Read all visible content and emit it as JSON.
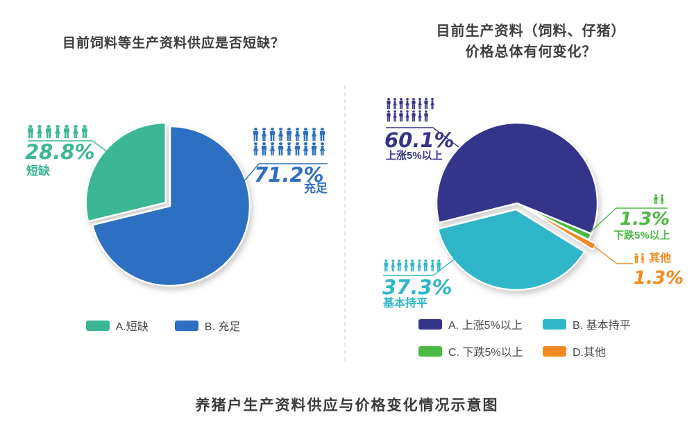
{
  "page": {
    "caption": "养猪户生产资料供应与价格变化情况示意图",
    "background_color": "#ffffff",
    "divider_color": "#e4e4e4",
    "title_color": "#3d3d3d"
  },
  "chart_data": [
    {
      "type": "pie",
      "title": "目前饲料等生产资料供应是否短缺？",
      "title_lines": [
        "目前饲料等生产资料供应是否短缺？"
      ],
      "start_angle": 0,
      "legend_position": "bottom",
      "slices": [
        {
          "name": "充足",
          "pct": 71.2,
          "display": "71.2%",
          "color": "#2d6fc1",
          "explode": 0,
          "people": 18
        },
        {
          "name": "短缺",
          "pct": 28.8,
          "display": "28.8%",
          "color": "#3bb795",
          "explode": 8,
          "people": 7
        }
      ],
      "legend": [
        {
          "label": "A.短缺",
          "color": "#3bb795"
        },
        {
          "label": "B. 充足",
          "color": "#2d6fc1"
        }
      ]
    },
    {
      "type": "pie",
      "title": "目前生产资料（饲料、仔猪）价格总体有何变化？",
      "title_lines": [
        "目前生产资料（饲料、仔猪）",
        "价格总体有何变化？"
      ],
      "start_angle": 256,
      "legend_position": "bottom",
      "slices": [
        {
          "name": "上涨5%以上",
          "pct": 60.1,
          "display": "60.1%",
          "color": "#35348b",
          "explode": 0,
          "people": 15
        },
        {
          "name": "下跌5%以上",
          "pct": 1.3,
          "display": "1.3%",
          "color": "#4cb944",
          "explode": 0,
          "people": 2
        },
        {
          "name": "其他",
          "pct": 1.3,
          "display": "1.3%",
          "color": "#f18a23",
          "explode": 12,
          "people": 2
        },
        {
          "name": "基本持平",
          "pct": 37.3,
          "display": "37.3%",
          "color": "#2fb6c8",
          "explode": 9,
          "people": 9
        }
      ],
      "legend": [
        {
          "label": "A. 上涨5%以上",
          "color": "#35348b"
        },
        {
          "label": "B. 基本持平",
          "color": "#2fb6c8"
        },
        {
          "label": "C. 下跌5%以上",
          "color": "#4cb944"
        },
        {
          "label": "D.其他",
          "color": "#f18a23"
        }
      ]
    }
  ]
}
